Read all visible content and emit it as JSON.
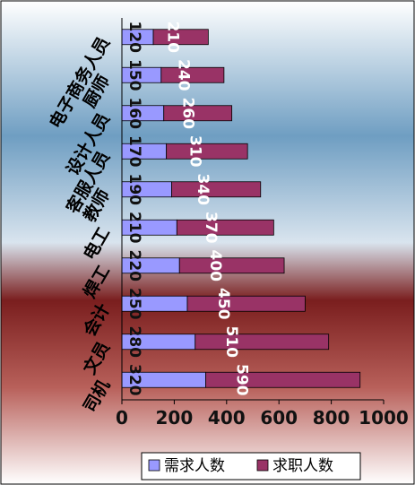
{
  "chart_data": {
    "type": "bar",
    "orientation": "horizontal",
    "stacked": true,
    "categories": [
      "电子商务人员",
      "厨师",
      "设计人员",
      "客服人员",
      "教师",
      "电工",
      "焊工",
      "会计",
      "文员",
      "司机"
    ],
    "series": [
      {
        "name": "需求人数",
        "color": "#9999ff",
        "values": [
          120,
          150,
          160,
          170,
          190,
          210,
          220,
          250,
          280,
          320
        ]
      },
      {
        "name": "求职人数",
        "color": "#993366",
        "values": [
          210,
          240,
          260,
          310,
          340,
          370,
          400,
          450,
          510,
          590
        ]
      }
    ],
    "data_labels": [
      [
        "120",
        "150",
        "160",
        "170",
        "190",
        "210",
        "220",
        "250",
        "280",
        "320"
      ],
      [
        "210",
        "240",
        "260",
        "310",
        "340",
        "370",
        "400",
        "450",
        "510",
        "590"
      ]
    ],
    "xlim": [
      0,
      1000
    ],
    "xticks": [
      "0",
      "200",
      "400",
      "600",
      "800",
      "1000"
    ],
    "legend_position": "bottom",
    "grid": false
  }
}
